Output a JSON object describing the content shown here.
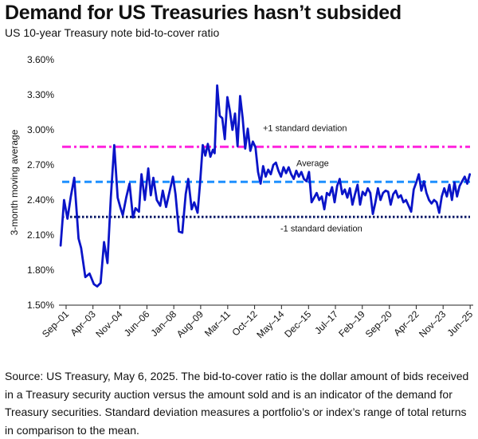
{
  "header": {
    "title": "Demand for US Treasuries hasn’t subsided",
    "subtitle": "US 10-year Treasury note bid-to-cover ratio"
  },
  "footer": {
    "source": "Source: US Treasury, May 6, 2025. The bid-to-cover ratio is the dollar amount of bids received in a Treasury security auction versus the amount sold and is an indicator of the demand for Treasury securities. Standard deviation measures a portfolio’s or index’s range of total returns in comparison to the mean."
  },
  "chart_data": {
    "type": "line",
    "title": "Demand for US Treasuries hasn’t subsided",
    "subtitle": "US 10-year Treasury note bid-to-cover ratio",
    "xlabel": "",
    "ylabel": "3-month moving average",
    "ylim": [
      1.5,
      3.6
    ],
    "xlim": [
      2001.25,
      2025.6
    ],
    "y_ticks": [
      1.5,
      1.8,
      2.1,
      2.4,
      2.7,
      3.0,
      3.3,
      3.6
    ],
    "y_tick_labels": [
      "1.50%",
      "1.80%",
      "2.10%",
      "2.40%",
      "2.70%",
      "3.00%",
      "3.30%",
      "3.60%"
    ],
    "x_ticks": [
      2001.67,
      2003.25,
      2004.83,
      2006.42,
      2008.0,
      2009.58,
      2011.17,
      2012.75,
      2014.33,
      2015.92,
      2017.5,
      2019.08,
      2020.67,
      2022.25,
      2023.83,
      2025.42
    ],
    "x_tick_labels": [
      "Sep–01",
      "Apr–03",
      "Nov–04",
      "Jun–06",
      "Jan–08",
      "Aug–09",
      "Mar–11",
      "Oct–12",
      "May–14",
      "Dec–15",
      "Jul–17",
      "Feb–19",
      "Sep–20",
      "Apr–22",
      "Nov–23",
      "Jun–25"
    ],
    "grid": false,
    "series": [
      {
        "name": "Bid-to-cover ratio (3-month moving average)",
        "color": "#0a14c8",
        "x": [
          2001.35,
          2001.55,
          2001.75,
          2001.95,
          2002.15,
          2002.4,
          2002.55,
          2002.8,
          2003.05,
          2003.3,
          2003.5,
          2003.7,
          2003.9,
          2004.1,
          2004.3,
          2004.5,
          2004.7,
          2004.85,
          2005.0,
          2005.2,
          2005.4,
          2005.6,
          2005.75,
          2005.95,
          2006.1,
          2006.3,
          2006.5,
          2006.65,
          2006.8,
          2007.0,
          2007.2,
          2007.35,
          2007.55,
          2007.75,
          2007.95,
          2008.1,
          2008.3,
          2008.5,
          2008.7,
          2008.85,
          2009.05,
          2009.2,
          2009.4,
          2009.55,
          2009.7,
          2009.85,
          2010.0,
          2010.15,
          2010.3,
          2010.4,
          2010.55,
          2010.7,
          2010.85,
          2011.0,
          2011.15,
          2011.3,
          2011.45,
          2011.6,
          2011.75,
          2011.9,
          2012.05,
          2012.2,
          2012.35,
          2012.5,
          2012.65,
          2012.8,
          2012.95,
          2013.1,
          2013.25,
          2013.4,
          2013.55,
          2013.7,
          2013.85,
          2014.0,
          2014.15,
          2014.3,
          2014.45,
          2014.6,
          2014.75,
          2014.9,
          2015.05,
          2015.2,
          2015.35,
          2015.5,
          2015.65,
          2015.8,
          2015.95,
          2016.1,
          2016.25,
          2016.4,
          2016.55,
          2016.7,
          2016.85,
          2017.0,
          2017.15,
          2017.3,
          2017.45,
          2017.6,
          2017.75,
          2017.9,
          2018.05,
          2018.2,
          2018.35,
          2018.5,
          2018.65,
          2018.8,
          2018.95,
          2019.1,
          2019.25,
          2019.4,
          2019.55,
          2019.7,
          2019.85,
          2020.0,
          2020.15,
          2020.3,
          2020.45,
          2020.6,
          2020.75,
          2020.9,
          2021.05,
          2021.2,
          2021.35,
          2021.5,
          2021.65,
          2021.8,
          2021.95,
          2022.1,
          2022.25,
          2022.4,
          2022.55,
          2022.7,
          2022.85,
          2023.0,
          2023.15,
          2023.3,
          2023.45,
          2023.6,
          2023.75,
          2023.9,
          2024.05,
          2024.2,
          2024.35,
          2024.5,
          2024.65,
          2024.8,
          2024.95,
          2025.1,
          2025.25,
          2025.4
        ],
        "values": [
          2.01,
          2.4,
          2.24,
          2.43,
          2.59,
          2.07,
          1.99,
          1.74,
          1.77,
          1.68,
          1.66,
          1.69,
          2.04,
          1.86,
          2.42,
          2.87,
          2.42,
          2.34,
          2.27,
          2.42,
          2.54,
          2.25,
          2.33,
          2.3,
          2.62,
          2.4,
          2.67,
          2.44,
          2.59,
          2.4,
          2.35,
          2.48,
          2.34,
          2.47,
          2.6,
          2.45,
          2.13,
          2.12,
          2.45,
          2.58,
          2.32,
          2.38,
          2.29,
          2.55,
          2.87,
          2.78,
          2.88,
          2.77,
          2.83,
          2.8,
          3.38,
          3.12,
          3.1,
          2.92,
          3.28,
          3.16,
          3.0,
          3.14,
          2.86,
          3.29,
          3.1,
          2.84,
          3.01,
          2.82,
          2.9,
          2.85,
          2.64,
          2.54,
          2.69,
          2.6,
          2.66,
          2.62,
          2.7,
          2.72,
          2.65,
          2.6,
          2.68,
          2.63,
          2.68,
          2.62,
          2.58,
          2.65,
          2.6,
          2.64,
          2.58,
          2.56,
          2.64,
          2.38,
          2.42,
          2.46,
          2.4,
          2.43,
          2.32,
          2.46,
          2.44,
          2.51,
          2.38,
          2.52,
          2.58,
          2.45,
          2.49,
          2.42,
          2.5,
          2.36,
          2.45,
          2.53,
          2.36,
          2.47,
          2.44,
          2.5,
          2.46,
          2.28,
          2.38,
          2.5,
          2.4,
          2.46,
          2.48,
          2.47,
          2.36,
          2.45,
          2.48,
          2.42,
          2.44,
          2.38,
          2.4,
          2.35,
          2.3,
          2.49,
          2.55,
          2.62,
          2.48,
          2.56,
          2.46,
          2.4,
          2.37,
          2.4,
          2.38,
          2.29,
          2.43,
          2.5,
          2.43,
          2.53,
          2.4,
          2.55,
          2.43,
          2.52,
          2.56,
          2.6,
          2.54,
          2.62
        ]
      }
    ],
    "reference_lines": [
      {
        "name": "+1 standard deviation",
        "value": 2.855,
        "color": "#ff22dd",
        "style": "dash-dot"
      },
      {
        "name": "Average",
        "value": 2.555,
        "color": "#1e90ff",
        "style": "dashed"
      },
      {
        "name": "-1 standard deviation",
        "value": 2.255,
        "color": "#0b1a66",
        "style": "dotted"
      }
    ]
  }
}
